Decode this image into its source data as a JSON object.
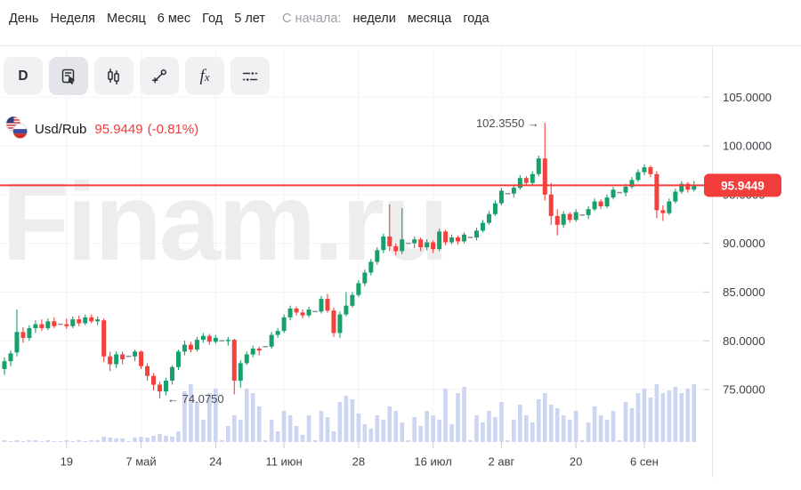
{
  "toolbar": {
    "periods": [
      "День",
      "Неделя",
      "Месяц",
      "6 мес",
      "Год",
      "5 лет"
    ],
    "since_label": "С начала:",
    "since_options": [
      "недели",
      "месяца",
      "года"
    ]
  },
  "chart_toolbar": {
    "buttons": [
      {
        "name": "timeframe-d",
        "label": "D"
      },
      {
        "name": "panel-select",
        "label": "",
        "active": true
      },
      {
        "name": "candlestick-style",
        "label": ""
      },
      {
        "name": "trendline-tool",
        "label": ""
      },
      {
        "name": "indicators",
        "label": "fx"
      },
      {
        "name": "chart-settings",
        "label": ""
      }
    ]
  },
  "instrument": {
    "flag": "usa-russia-flags",
    "pair": "Usd/Rub",
    "price": "95.9449",
    "change": "(-0.81%)"
  },
  "watermark": "Finam.ru",
  "annotations": {
    "high_label": "102.3550 →",
    "low_label": "← 74.0750"
  },
  "price_badge": {
    "value": "95.9449"
  },
  "axis": {
    "y_labels": [
      "105.0000",
      "100.0000",
      "95.0000",
      "90.0000",
      "85.0000",
      "80.0000",
      "75.0000"
    ],
    "x_labels": [
      "19",
      "7 май",
      "24",
      "11 июн",
      "28",
      "16 июл",
      "2 авг",
      "20",
      "6 сен"
    ]
  },
  "colors": {
    "up": "#16a06a",
    "down": "#f3413d",
    "flat_day": "#90949c",
    "volume": "#ccd5f2",
    "price_line": "#f23d3d",
    "grid": "#f3f3f5",
    "watermark": "#ededed",
    "axis_text": "#3b3e44",
    "annotation_text": "#4a4d53",
    "badge_bg": "#f23d3d",
    "badge_text": "#ffffff"
  },
  "chart_data": {
    "type": "candlestick",
    "symbol": "Usd/Rub",
    "timeframe": "D",
    "last_price": 95.9449,
    "change_pct": -0.81,
    "high_annotation": 102.355,
    "low_annotation": 74.075,
    "price_line": 95.9449,
    "grid": true,
    "y_ticks": [
      105,
      100,
      95,
      90,
      85,
      80,
      75
    ],
    "x_ticks": [
      {
        "label": "19",
        "i": 10
      },
      {
        "label": "7 май",
        "i": 22
      },
      {
        "label": "24",
        "i": 34
      },
      {
        "label": "11 июн",
        "i": 45
      },
      {
        "label": "28",
        "i": 57
      },
      {
        "label": "16 июл",
        "i": 69
      },
      {
        "label": "2 авг",
        "i": 80
      },
      {
        "label": "20",
        "i": 92
      },
      {
        "label": "6 сен",
        "i": 103
      }
    ],
    "high_annotation_candle": 87,
    "low_annotation_candle": 25,
    "candles": [
      [
        77.1,
        78.3,
        76.5,
        77.9
      ],
      [
        77.9,
        79.0,
        77.4,
        78.7
      ],
      [
        78.8,
        83.2,
        78.4,
        80.9
      ],
      [
        80.9,
        81.4,
        79.8,
        80.3
      ],
      [
        80.3,
        81.6,
        80.0,
        81.3
      ],
      [
        81.3,
        82.1,
        80.8,
        81.7
      ],
      [
        81.7,
        82.2,
        81.0,
        81.3
      ],
      [
        81.3,
        82.3,
        81.1,
        82.0
      ],
      [
        82.0,
        82.4,
        81.3,
        81.5
      ],
      [
        81.7,
        81.7,
        81.7,
        81.7
      ],
      [
        81.7,
        82.3,
        81.2,
        81.5
      ],
      [
        81.5,
        82.5,
        81.3,
        82.2
      ],
      [
        82.2,
        82.6,
        81.5,
        81.8
      ],
      [
        81.8,
        82.7,
        81.6,
        82.4
      ],
      [
        82.4,
        82.7,
        81.8,
        82.0
      ],
      [
        82.0,
        82.5,
        81.6,
        82.2
      ],
      [
        82.1,
        82.3,
        77.8,
        78.4
      ],
      [
        78.4,
        78.9,
        76.9,
        77.6
      ],
      [
        77.6,
        78.9,
        77.2,
        78.6
      ],
      [
        78.6,
        78.9,
        77.6,
        78.1
      ],
      [
        78.4,
        78.4,
        78.4,
        78.4
      ],
      [
        78.4,
        79.1,
        77.9,
        78.9
      ],
      [
        78.9,
        79.0,
        77.1,
        77.4
      ],
      [
        77.4,
        77.7,
        75.9,
        76.4
      ],
      [
        76.4,
        76.7,
        74.9,
        75.5
      ],
      [
        75.5,
        75.8,
        74.075,
        74.8
      ],
      [
        74.8,
        76.2,
        74.4,
        75.9
      ],
      [
        75.9,
        77.5,
        75.5,
        77.3
      ],
      [
        77.3,
        79.1,
        77.0,
        78.9
      ],
      [
        78.9,
        80.0,
        78.5,
        79.6
      ],
      [
        79.6,
        79.9,
        78.8,
        79.1
      ],
      [
        79.1,
        80.4,
        78.9,
        80.1
      ],
      [
        80.1,
        80.8,
        79.8,
        80.5
      ],
      [
        80.5,
        80.7,
        79.6,
        79.9
      ],
      [
        79.9,
        80.6,
        79.7,
        80.3
      ],
      [
        80.0,
        80.0,
        80.0,
        80.0
      ],
      [
        80.0,
        80.4,
        79.5,
        80.1
      ],
      [
        80.1,
        80.2,
        74.5,
        75.9
      ],
      [
        75.9,
        78.0,
        75.2,
        77.7
      ],
      [
        77.7,
        78.9,
        77.5,
        78.6
      ],
      [
        78.6,
        79.5,
        78.3,
        79.2
      ],
      [
        79.2,
        79.4,
        78.5,
        79.0
      ],
      [
        79.4,
        79.4,
        79.4,
        79.4
      ],
      [
        79.4,
        80.9,
        79.2,
        80.6
      ],
      [
        80.6,
        81.3,
        80.3,
        81.0
      ],
      [
        81.0,
        82.7,
        80.8,
        82.4
      ],
      [
        82.4,
        83.6,
        82.1,
        83.3
      ],
      [
        83.3,
        83.5,
        82.6,
        82.9
      ],
      [
        82.9,
        83.2,
        82.3,
        82.6
      ],
      [
        82.6,
        83.5,
        82.4,
        83.2
      ],
      [
        83.0,
        83.0,
        83.0,
        83.0
      ],
      [
        83.0,
        84.6,
        82.8,
        84.3
      ],
      [
        84.3,
        84.8,
        82.9,
        83.1
      ],
      [
        83.1,
        83.4,
        80.4,
        80.8
      ],
      [
        80.8,
        83.0,
        80.3,
        82.7
      ],
      [
        82.7,
        85.0,
        82.5,
        83.6
      ],
      [
        83.6,
        85.0,
        83.4,
        84.7
      ],
      [
        84.7,
        86.2,
        84.5,
        85.9
      ],
      [
        85.9,
        87.3,
        85.6,
        87.0
      ],
      [
        87.0,
        88.4,
        86.7,
        88.1
      ],
      [
        88.1,
        89.6,
        87.8,
        89.3
      ],
      [
        89.3,
        91.0,
        89.0,
        90.7
      ],
      [
        90.7,
        94.0,
        89.2,
        89.7
      ],
      [
        89.7,
        90.0,
        88.8,
        89.2
      ],
      [
        89.2,
        93.6,
        88.9,
        90.4
      ],
      [
        90.0,
        90.0,
        90.0,
        90.0
      ],
      [
        90.0,
        90.7,
        89.5,
        90.4
      ],
      [
        90.4,
        90.6,
        89.2,
        89.6
      ],
      [
        89.6,
        90.4,
        89.3,
        90.1
      ],
      [
        90.1,
        90.3,
        89.0,
        89.4
      ],
      [
        89.4,
        91.5,
        89.2,
        91.2
      ],
      [
        91.2,
        91.4,
        89.8,
        90.1
      ],
      [
        90.1,
        90.9,
        89.9,
        90.6
      ],
      [
        90.6,
        90.8,
        89.9,
        90.2
      ],
      [
        90.2,
        91.1,
        90.0,
        90.9
      ],
      [
        90.6,
        90.6,
        90.6,
        90.6
      ],
      [
        90.6,
        91.6,
        90.3,
        91.3
      ],
      [
        91.3,
        92.4,
        91.1,
        92.1
      ],
      [
        92.1,
        93.3,
        91.9,
        93.0
      ],
      [
        93.0,
        94.4,
        92.8,
        94.1
      ],
      [
        94.1,
        95.7,
        93.9,
        95.4
      ],
      [
        95.1,
        95.1,
        95.1,
        95.1
      ],
      [
        95.1,
        96.0,
        94.7,
        95.7
      ],
      [
        95.7,
        97.0,
        95.5,
        96.7
      ],
      [
        96.7,
        96.9,
        95.9,
        96.2
      ],
      [
        96.2,
        97.4,
        96.0,
        97.1
      ],
      [
        97.1,
        99.0,
        96.9,
        98.7
      ],
      [
        98.7,
        102.355,
        94.4,
        95.0
      ],
      [
        95.0,
        96.2,
        91.9,
        92.8
      ],
      [
        92.8,
        93.5,
        90.8,
        91.9
      ],
      [
        91.9,
        93.3,
        91.6,
        93.0
      ],
      [
        93.0,
        93.2,
        92.1,
        92.4
      ],
      [
        92.4,
        93.5,
        92.2,
        93.2
      ],
      [
        92.9,
        92.9,
        92.9,
        92.9
      ],
      [
        92.9,
        93.8,
        92.5,
        93.5
      ],
      [
        93.5,
        94.6,
        93.3,
        94.3
      ],
      [
        94.3,
        94.5,
        93.5,
        93.8
      ],
      [
        93.8,
        95.0,
        93.6,
        94.7
      ],
      [
        94.7,
        95.8,
        94.5,
        95.5
      ],
      [
        95.2,
        95.2,
        95.2,
        95.2
      ],
      [
        95.2,
        96.1,
        94.8,
        95.8
      ],
      [
        95.8,
        96.8,
        95.6,
        96.5
      ],
      [
        96.5,
        97.6,
        96.3,
        97.3
      ],
      [
        97.3,
        98.1,
        97.0,
        97.8
      ],
      [
        97.8,
        98.0,
        96.8,
        97.1
      ],
      [
        97.1,
        97.4,
        92.6,
        93.4
      ],
      [
        93.4,
        93.9,
        92.3,
        93.1
      ],
      [
        93.1,
        94.6,
        92.9,
        94.3
      ],
      [
        94.3,
        95.6,
        94.1,
        95.3
      ],
      [
        95.3,
        96.4,
        95.1,
        96.1
      ],
      [
        96.1,
        96.3,
        95.2,
        95.5
      ],
      [
        95.5,
        96.4,
        95.3,
        95.9449
      ]
    ],
    "volumes": [
      2,
      1,
      2,
      1,
      2,
      2,
      1,
      2,
      1,
      1,
      2,
      1,
      2,
      1,
      2,
      2,
      6,
      5,
      4,
      4,
      1,
      5,
      6,
      5,
      7,
      9,
      7,
      6,
      12,
      57,
      65,
      45,
      25,
      55,
      60,
      2,
      18,
      30,
      25,
      60,
      55,
      40,
      2,
      25,
      12,
      35,
      30,
      18,
      8,
      30,
      2,
      35,
      28,
      12,
      45,
      52,
      48,
      32,
      20,
      15,
      30,
      25,
      40,
      35,
      22,
      2,
      28,
      18,
      35,
      30,
      25,
      60,
      20,
      55,
      62,
      2,
      30,
      22,
      35,
      28,
      45,
      2,
      25,
      42,
      30,
      22,
      48,
      55,
      42,
      38,
      30,
      25,
      35,
      2,
      22,
      40,
      30,
      25,
      35,
      2,
      45,
      38,
      55,
      60,
      50,
      65,
      55,
      58,
      62,
      55,
      60,
      65
    ],
    "volume_units": "relative"
  }
}
